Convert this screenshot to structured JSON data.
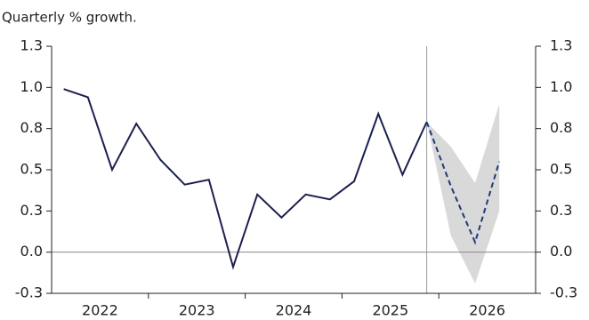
{
  "chart_data": {
    "type": "line",
    "subtitle": "Quarterly % growth.",
    "xlim": [
      2022,
      2027
    ],
    "xticks": [
      {
        "value": 2022.5,
        "label": "2022"
      },
      {
        "value": 2023.5,
        "label": "2023"
      },
      {
        "value": 2024.5,
        "label": "2024"
      },
      {
        "value": 2025.5,
        "label": "2025"
      },
      {
        "value": 2026.5,
        "label": "2026"
      }
    ],
    "xminor": [
      2023,
      2024,
      2025,
      2026
    ],
    "vline": 2025.875,
    "ylim": [
      -0.25,
      1.25
    ],
    "yticks": [
      {
        "value": -0.25,
        "label": "-0.3"
      },
      {
        "value": 0,
        "label": "0.0"
      },
      {
        "value": 0.25,
        "label": "0.3"
      },
      {
        "value": 0.5,
        "label": "0.5"
      },
      {
        "value": 0.75,
        "label": "0.8"
      },
      {
        "value": 1,
        "label": "1.0"
      },
      {
        "value": 1.25,
        "label": "1.3"
      }
    ],
    "y2lim": [
      -0.25,
      1.25
    ],
    "y2ticks": [
      {
        "value": -0.25,
        "label": "-0.3"
      },
      {
        "value": 0,
        "label": "0.0"
      },
      {
        "value": 0.25,
        "label": "0.3"
      },
      {
        "value": 0.5,
        "label": "0.5"
      },
      {
        "value": 0.75,
        "label": "0.8"
      },
      {
        "value": 1,
        "label": "1.0"
      },
      {
        "value": 1.25,
        "label": "1.3"
      }
    ],
    "band": {
      "color": "#d9d9d9",
      "x": [
        2025.875,
        2026.125,
        2026.375,
        2026.625
      ],
      "lower": [
        0.79,
        0.1,
        -0.19,
        0.25
      ],
      "upper": [
        0.79,
        0.64,
        0.42,
        0.9
      ]
    },
    "series": [
      {
        "color": "#1c1f4f",
        "dash": false,
        "x": [
          2022.125,
          2022.375,
          2022.625,
          2022.875,
          2023.125,
          2023.375,
          2023.625,
          2023.875,
          2024.125,
          2024.375,
          2024.625,
          2024.875,
          2025.125,
          2025.375,
          2025.625,
          2025.875
        ],
        "values": [
          0.99,
          0.94,
          0.5,
          0.78,
          0.56,
          0.41,
          0.44,
          -0.09,
          0.35,
          0.21,
          0.35,
          0.32,
          0.43,
          0.84,
          0.47,
          0.79
        ]
      },
      {
        "color": "#1f3a7a",
        "dash": true,
        "x": [
          2025.875,
          2026.125,
          2026.375,
          2026.625
        ],
        "values": [
          0.79,
          0.4,
          0.06,
          0.55
        ]
      }
    ]
  }
}
